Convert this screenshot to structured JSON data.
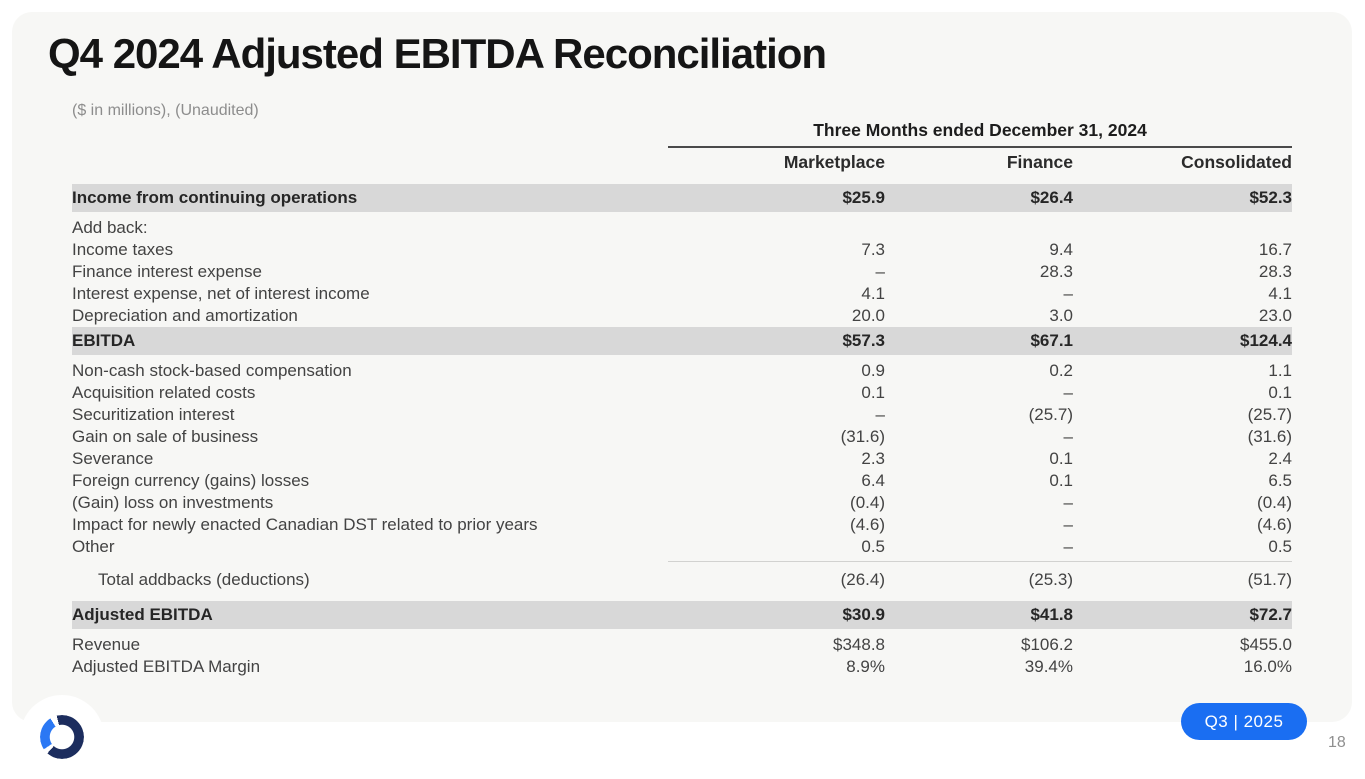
{
  "slide": {
    "title": "Q4 2024 Adjusted EBITDA Reconciliation",
    "subtitle": "($ in millions), (Unaudited)",
    "badge_label": "Q3 | 2025",
    "page_number": "18"
  },
  "colors": {
    "slide_bg": "#f7f7f5",
    "canvas_bg": "#ffffff",
    "row_highlight": "#d8d8d8",
    "text_primary": "#262626",
    "text_secondary": "#434343",
    "text_muted": "#8d8d8d",
    "badge_bg": "#1a6ef2",
    "badge_text": "#ffffff",
    "logo_navy": "#1c2d5e",
    "logo_blue": "#2b78f4",
    "header_rule": "#4a4a4a",
    "thin_rule": "#d2d2d0"
  },
  "table": {
    "period_header": "Three Months ended December 31, 2024",
    "columns": [
      "Marketplace",
      "Finance",
      "Consolidated"
    ],
    "rows": [
      {
        "label": "Income from continuing operations",
        "values": [
          "$25.9",
          "$26.4",
          "$52.3"
        ],
        "shaded": true
      },
      {
        "label": "Add back:",
        "values": [
          "",
          "",
          ""
        ],
        "spacer_before": true
      },
      {
        "label": "Income taxes",
        "values": [
          "7.3",
          "9.4",
          "16.7"
        ]
      },
      {
        "label": "Finance interest expense",
        "values": [
          "–",
          "28.3",
          "28.3"
        ]
      },
      {
        "label": "Interest expense, net of interest income",
        "values": [
          "4.1",
          "–",
          "4.1"
        ]
      },
      {
        "label": "Depreciation and amortization",
        "values": [
          "20.0",
          "3.0",
          "23.0"
        ]
      },
      {
        "label": "EBITDA",
        "values": [
          "$57.3",
          "$67.1",
          "$124.4"
        ],
        "shaded": true
      },
      {
        "label": "Non-cash stock-based compensation",
        "values": [
          "0.9",
          "0.2",
          "1.1"
        ]
      },
      {
        "label": "Acquisition related costs",
        "values": [
          "0.1",
          "–",
          "0.1"
        ]
      },
      {
        "label": "Securitization interest",
        "values": [
          "–",
          "(25.7)",
          "(25.7)"
        ]
      },
      {
        "label": "Gain on sale of business",
        "values": [
          "(31.6)",
          "–",
          "(31.6)"
        ]
      },
      {
        "label": "Severance",
        "values": [
          "2.3",
          "0.1",
          "2.4"
        ]
      },
      {
        "label": "Foreign currency (gains) losses",
        "values": [
          "6.4",
          "0.1",
          "6.5"
        ]
      },
      {
        "label": "(Gain) loss on investments",
        "values": [
          "(0.4)",
          "–",
          "(0.4)"
        ]
      },
      {
        "label": "Impact for newly enacted Canadian DST related to prior years",
        "values": [
          "(4.6)",
          "–",
          "(4.6)"
        ]
      },
      {
        "label": "Other",
        "values": [
          "0.5",
          "–",
          "0.5"
        ],
        "rule_below": true
      },
      {
        "label": "Total addbacks (deductions)",
        "values": [
          "(26.4)",
          "(25.3)",
          "(51.7)"
        ],
        "indent": true,
        "spacer_before": true
      },
      {
        "label": "Adjusted EBITDA",
        "values": [
          "$30.9",
          "$41.8",
          "$72.7"
        ],
        "shaded": true,
        "spacer_before": true
      },
      {
        "label": "Revenue",
        "values": [
          "$348.8",
          "$106.2",
          "$455.0"
        ]
      },
      {
        "label": "Adjusted EBITDA Margin",
        "values": [
          "8.9%",
          "39.4%",
          "16.0%"
        ]
      }
    ]
  }
}
